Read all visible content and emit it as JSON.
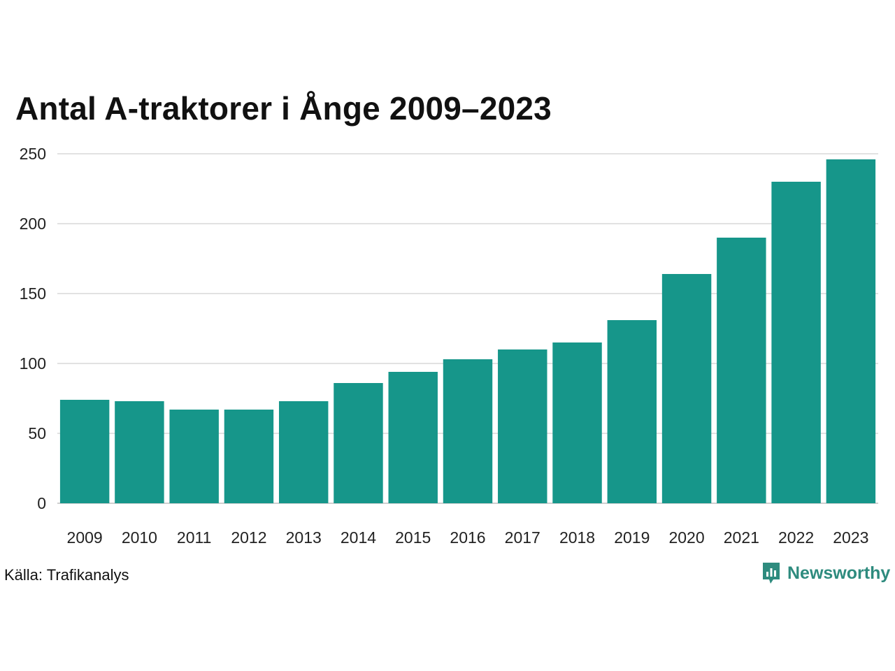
{
  "chart_data": {
    "type": "bar",
    "title": "Antal A-traktorer i Ånge 2009–2023",
    "categories": [
      "2009",
      "2010",
      "2011",
      "2012",
      "2013",
      "2014",
      "2015",
      "2016",
      "2017",
      "2018",
      "2019",
      "2020",
      "2021",
      "2022",
      "2023"
    ],
    "values": [
      74,
      73,
      67,
      67,
      73,
      86,
      94,
      103,
      110,
      115,
      131,
      164,
      190,
      230,
      246
    ],
    "yticks": [
      "0",
      "50",
      "100",
      "150",
      "200",
      "250"
    ],
    "ylim": [
      0,
      250
    ],
    "grid": true,
    "xlabel": "",
    "ylabel": ""
  },
  "source": "Källa: Trafikanalys",
  "brand": {
    "name": "Newsworthy",
    "icon": "newsworthy-logo-icon"
  },
  "colors": {
    "bar": "#16968a",
    "brand": "#2e8b7e",
    "grid": "#e2e2e2",
    "axis": "#d0d0d0"
  }
}
